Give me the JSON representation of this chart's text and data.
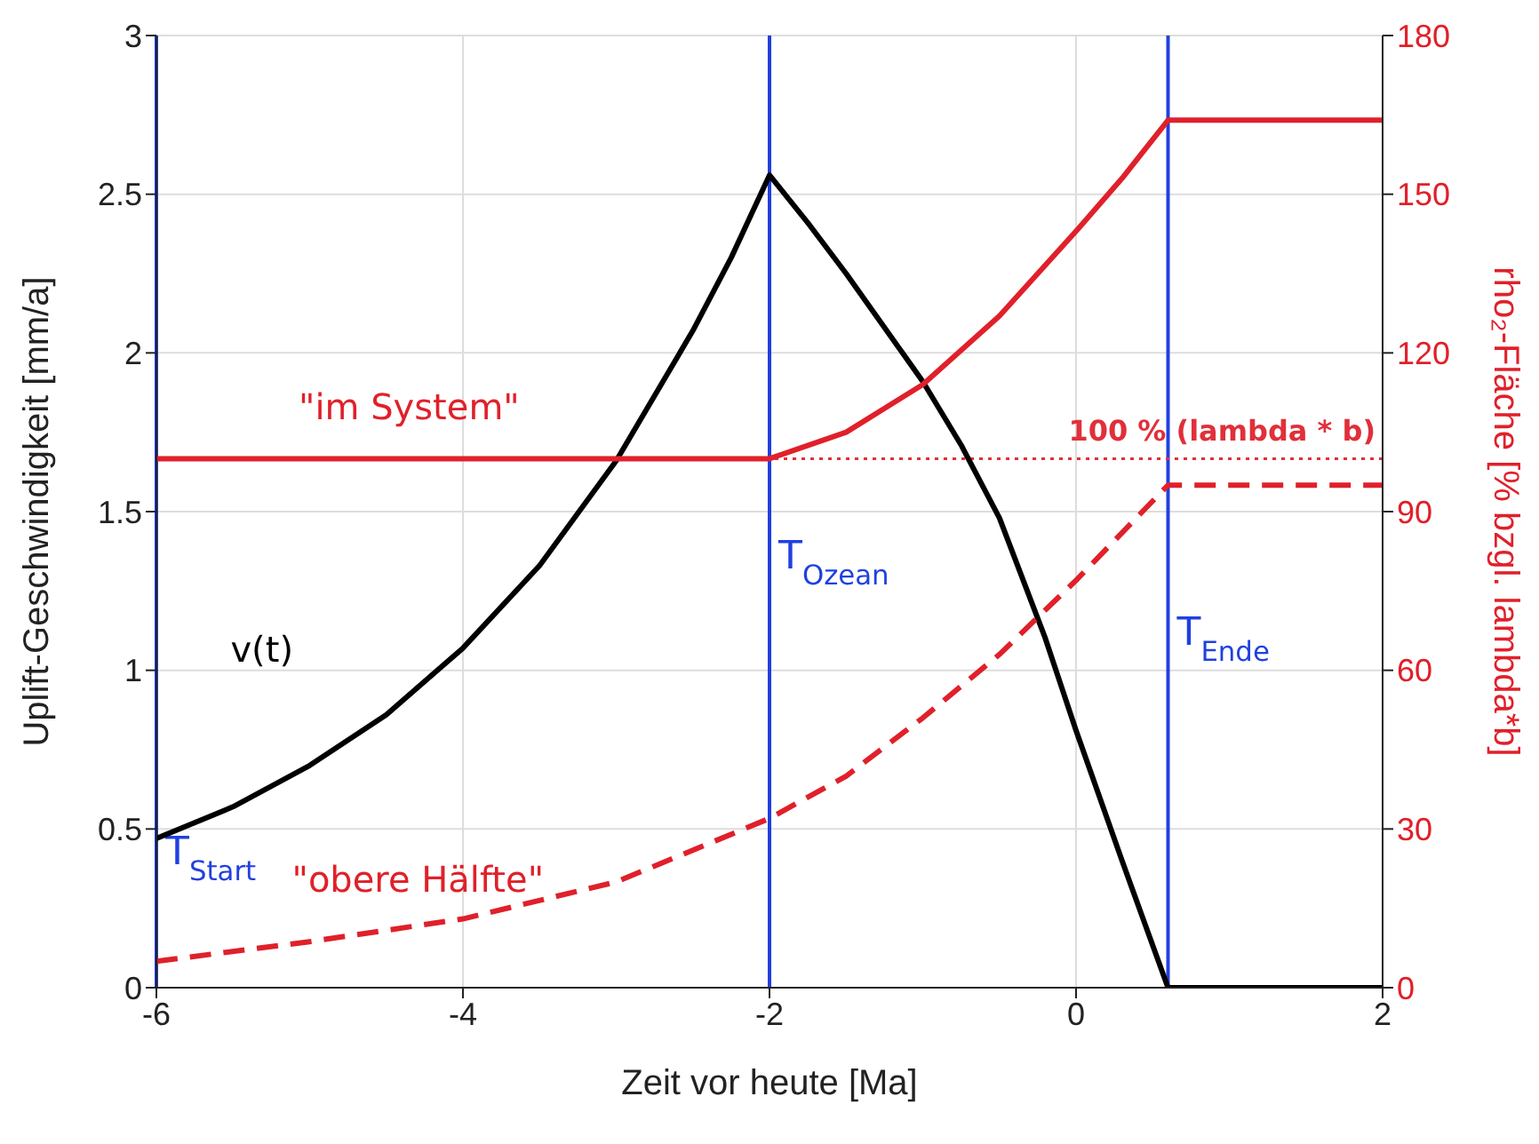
{
  "chart_data": {
    "type": "line",
    "xlabel": "Zeit vor heute [Ma]",
    "ylabel": "Uplift-Geschwindigkeit [mm/a]",
    "y2label": "rho₂-Fläche [% bzgl. lambda*b]",
    "xlim": [
      -6,
      2
    ],
    "xticks": [
      -6,
      -4,
      -2,
      0,
      2
    ],
    "ylim": [
      0,
      3
    ],
    "yticks": [
      0,
      0.5,
      1,
      1.5,
      2,
      2.5,
      3
    ],
    "y2lim": [
      0,
      180
    ],
    "y2ticks": [
      0,
      30,
      60,
      90,
      120,
      150,
      180
    ],
    "grid": true,
    "marker": "none",
    "series": [
      {
        "name": "v(t)",
        "color": "#000000",
        "line_style": "solid",
        "x": [
          -6,
          -5.5,
          -5,
          -4.5,
          -4,
          -3.5,
          -3,
          -2.5,
          -2.25,
          -2,
          -1.75,
          -1.5,
          -1.25,
          -1,
          -0.75,
          -0.5,
          -0.2,
          0,
          0.3,
          0.6,
          2
        ],
        "values": [
          0.47,
          0.57,
          0.7,
          0.86,
          1.07,
          1.33,
          1.66,
          2.07,
          2.3,
          2.56,
          2.41,
          2.25,
          2.08,
          1.91,
          1.71,
          1.48,
          1.1,
          0.81,
          0.4,
          0,
          0
        ]
      },
      {
        "name": "\"im System\"",
        "color": "#e0202a",
        "axis": "y2",
        "line_style": "solid",
        "x": [
          -6,
          -2,
          -1.5,
          -1,
          -0.5,
          0,
          0.3,
          0.6,
          2
        ],
        "values": [
          100,
          100,
          105,
          114,
          127,
          143,
          153,
          164,
          164
        ]
      },
      {
        "name": "\"obere Hälfte\"",
        "color": "#e0202a",
        "axis": "y2",
        "line_style": "dashed",
        "x": [
          -6,
          -5,
          -4,
          -3,
          -2,
          -1.5,
          -1,
          -0.5,
          0,
          0.3,
          0.6,
          2
        ],
        "values": [
          5,
          8.7,
          13,
          20,
          32,
          40,
          51,
          63,
          77,
          86,
          95,
          95
        ]
      }
    ],
    "ref_lines": [
      {
        "axis": "x",
        "value": -6,
        "label": "T$_{Start}$",
        "color": "#2040e0",
        "line_style": "solid"
      },
      {
        "axis": "x",
        "value": -2,
        "label": "T$_{Ozean}$",
        "color": "#2040e0",
        "line_style": "solid"
      },
      {
        "axis": "x",
        "value": 0.6,
        "label": "T$_{Ende}$",
        "color": "#2040e0",
        "line_style": "solid"
      },
      {
        "axis": "y2",
        "value": 100,
        "label": "100 % (lambda * b)",
        "color": "#e0303a",
        "line_style": "dotted"
      }
    ]
  }
}
